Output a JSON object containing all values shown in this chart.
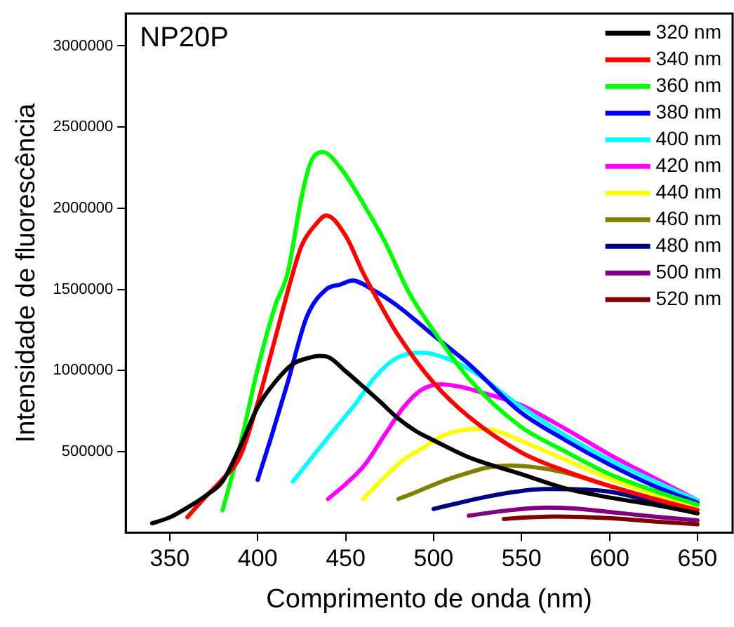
{
  "chart_data": {
    "type": "line",
    "title": "NP20P",
    "xlabel": "Comprimento de onda (nm)",
    "ylabel": "Intensidade de fluorescência",
    "xlim": [
      325,
      670
    ],
    "ylim": [
      0,
      3200000
    ],
    "xticks": [
      350,
      400,
      450,
      500,
      550,
      600,
      650
    ],
    "yticks": [
      500000,
      1000000,
      1500000,
      2000000,
      2500000,
      3000000
    ],
    "grid": false,
    "legend": "top right",
    "marker": "none",
    "line_style": "solid",
    "series": [
      {
        "name": "320 nm",
        "color": "#000000",
        "x": [
          340,
          350,
          360,
          370,
          380,
          390,
          400,
          410,
          420,
          430,
          435,
          440,
          450,
          460,
          470,
          480,
          490,
          500,
          520,
          550,
          575,
          600,
          625,
          650
        ],
        "values": [
          58000,
          95000,
          155000,
          225000,
          317000,
          530000,
          774000,
          930000,
          1040000,
          1080000,
          1090000,
          1083000,
          995000,
          900000,
          803000,
          703000,
          626000,
          570000,
          465000,
          361000,
          273000,
          217000,
          173000,
          120000
        ]
      },
      {
        "name": "340 nm",
        "color": "#ff0000",
        "x": [
          360,
          370,
          380,
          390,
          400,
          410,
          420,
          425,
          433,
          439,
          450,
          460,
          470,
          480,
          500,
          520,
          550,
          575,
          600,
          625,
          650
        ],
        "values": [
          96000,
          217000,
          330000,
          470000,
          800000,
          1200000,
          1600000,
          1770000,
          1900000,
          1955000,
          1830000,
          1600000,
          1400000,
          1215000,
          924000,
          715000,
          494000,
          380000,
          288000,
          210000,
          140000
        ]
      },
      {
        "name": "360 nm",
        "color": "#00ff00",
        "x": [
          380,
          390,
          400,
          410,
          417,
          425,
          430,
          437,
          447,
          461,
          472,
          486,
          500,
          520,
          549,
          575,
          600,
          625,
          650
        ],
        "values": [
          138000,
          538000,
          1010000,
          1400000,
          1600000,
          2070000,
          2280000,
          2346000,
          2250000,
          2010000,
          1800000,
          1480000,
          1245000,
          950000,
          658000,
          500000,
          361000,
          260000,
          173000
        ]
      },
      {
        "name": "380 nm",
        "color": "#0000ff",
        "x": [
          400,
          408,
          417,
          428,
          439,
          447,
          454,
          465,
          478,
          500,
          520,
          549,
          575,
          600,
          625,
          650
        ],
        "values": [
          326000,
          600000,
          924000,
          1333000,
          1500000,
          1530000,
          1554000,
          1500000,
          1410000,
          1216000,
          1040000,
          747000,
          570000,
          420000,
          290000,
          185000
        ]
      },
      {
        "name": "400 nm",
        "color": "#00ffff",
        "x": [
          420,
          432,
          444,
          456,
          466,
          478,
          492,
          500,
          520,
          550,
          575,
          600,
          625,
          650
        ],
        "values": [
          315000,
          480000,
          641000,
          800000,
          950000,
          1070000,
          1110000,
          1100000,
          1010000,
          774000,
          600000,
          450000,
          320000,
          200000
        ]
      },
      {
        "name": "420 nm",
        "color": "#ff00ff",
        "x": [
          440,
          450,
          461,
          472,
          483,
          493,
          504,
          515,
          528,
          549,
          575,
          600,
          625,
          650
        ],
        "values": [
          208000,
          300000,
          420000,
          600000,
          774000,
          880000,
          915000,
          900000,
          862000,
          790000,
          640000,
          482000,
          340000,
          200000
        ]
      },
      {
        "name": "440 nm",
        "color": "#ffff00",
        "x": [
          460,
          470,
          483,
          495,
          505,
          515,
          525,
          535,
          549,
          575,
          600,
          625,
          650
        ],
        "values": [
          208000,
          320000,
          450000,
          530000,
          597000,
          630000,
          641000,
          630000,
          570000,
          450000,
          332000,
          240000,
          155000
        ]
      },
      {
        "name": "460 nm",
        "color": "#808000",
        "x": [
          480,
          490,
          505,
          520,
          530,
          544,
          560,
          575,
          600,
          625,
          650
        ],
        "values": [
          208000,
          250000,
          317000,
          370000,
          400000,
          414000,
          400000,
          370000,
          288000,
          210000,
          140000
        ]
      },
      {
        "name": "480 nm",
        "color": "#000080",
        "x": [
          500,
          515,
          528,
          545,
          564,
          580,
          600,
          625,
          650
        ],
        "values": [
          147000,
          185000,
          217000,
          250000,
          270000,
          268000,
          253000,
          190000,
          120000
        ]
      },
      {
        "name": "500 nm",
        "color": "#800080",
        "x": [
          520,
          540,
          564,
          580,
          600,
          625,
          650
        ],
        "values": [
          105000,
          135000,
          155000,
          150000,
          128000,
          100000,
          76000
        ]
      },
      {
        "name": "520 nm",
        "color": "#800000",
        "x": [
          540,
          555,
          569,
          585,
          600,
          625,
          650
        ],
        "values": [
          85000,
          95000,
          100000,
          97000,
          90000,
          70000,
          52000
        ]
      }
    ]
  }
}
